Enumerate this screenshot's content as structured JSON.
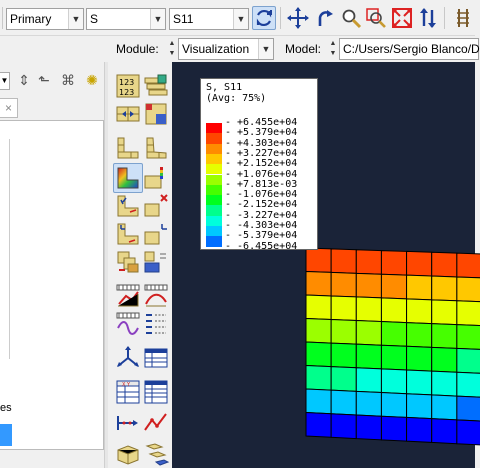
{
  "toolbar": {
    "step_combo": "Primary",
    "variable_combo": "S",
    "component_combo": "S11",
    "buttons": [
      "sync-views-icon",
      "pan-icon",
      "rotate-icon",
      "zoom-icon",
      "zoom-box-icon",
      "auto-fit-icon",
      "cycle-views-icon",
      "more-icon"
    ]
  },
  "modbar": {
    "module_label": "Module:",
    "module_value": "Visualization",
    "model_label": "Model:",
    "model_value": "C:/Users/Sergio Blanco/D"
  },
  "left_panel": {
    "tab_close": "×",
    "bottom_text": "es"
  },
  "legend": {
    "title": "S, S11",
    "subtitle": "(Avg: 75%)",
    "entries": [
      {
        "value": "+6.455e+04",
        "color": "#ff0000"
      },
      {
        "value": "+5.379e+04",
        "color": "#ff4600"
      },
      {
        "value": "+4.303e+04",
        "color": "#ff8c00"
      },
      {
        "value": "+3.227e+04",
        "color": "#ffc800"
      },
      {
        "value": "+2.152e+04",
        "color": "#e6ff00"
      },
      {
        "value": "+1.076e+04",
        "color": "#9bff00"
      },
      {
        "value": "+7.813e-03",
        "color": "#46ff00"
      },
      {
        "value": "-1.076e+04",
        "color": "#00ff1e"
      },
      {
        "value": "-2.152e+04",
        "color": "#00ff8c"
      },
      {
        "value": "-3.227e+04",
        "color": "#00ffdc"
      },
      {
        "value": "-4.303e+04",
        "color": "#00c8ff"
      },
      {
        "value": "-5.379e+04",
        "color": "#006eff"
      },
      {
        "value": "-6.455e+04",
        "color": "#0000ff"
      }
    ]
  },
  "colors": {
    "viewport_bg": "#1a2338",
    "selection": "#3399ff",
    "toolbar_icon": "#1c3f9a"
  }
}
